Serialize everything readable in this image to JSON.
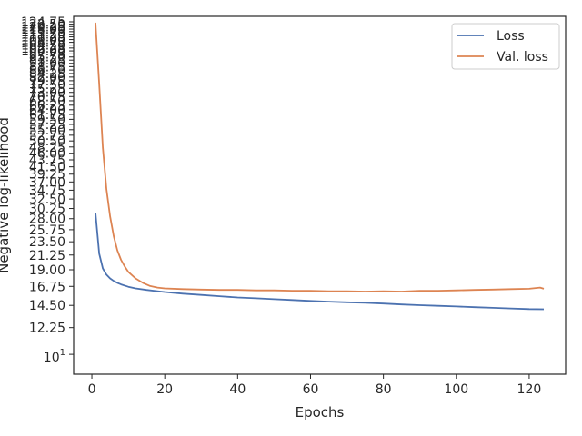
{
  "chart_data": {
    "type": "line",
    "xlabel": "Epochs",
    "ylabel": "Negative log-likelihood",
    "y_scale": "log",
    "xlim": [
      -5,
      130
    ],
    "ylim": [
      8.6,
      130
    ],
    "x_ticks": [
      0,
      20,
      40,
      60,
      80,
      100,
      120
    ],
    "y_tick_values": [
      10,
      12.25,
      14.5,
      16.75,
      19.0,
      21.25,
      23.5,
      25.75,
      28.0,
      30.25,
      32.5,
      34.75,
      37.0,
      39.25,
      41.5,
      43.75,
      46.0,
      48.25,
      50.5,
      52.75,
      55.0,
      57.25,
      59.5,
      61.75,
      64.0,
      66.25,
      68.5,
      70.75,
      73.0,
      75.25,
      77.5,
      79.75,
      82.0,
      84.25,
      86.5,
      88.75,
      91.0,
      93.25,
      95.5,
      97.75,
      100.0,
      102.25,
      104.5,
      106.75,
      109.0,
      111.25,
      113.5,
      115.75,
      118.0,
      120.25,
      122.5,
      124.75
    ],
    "y_tick_labels": [
      "10^1",
      "12.25",
      "14.50",
      "16.75",
      "19.00",
      "21.25",
      "23.50",
      "25.75",
      "28.00",
      "30.25",
      "32.50",
      "34.75",
      "37.00",
      "39.25",
      "41.50",
      "43.75",
      "46.00",
      "48.25",
      "50.50",
      "52.75",
      "55.00",
      "57.25",
      "59.50",
      "61.75",
      "64.00",
      "66.25",
      "68.50",
      "70.75",
      "73.00",
      "75.25",
      "77.50",
      "79.75",
      "82.00",
      "84.25",
      "86.50",
      "88.75",
      "91.00",
      "93.25",
      "95.50",
      "97.75",
      "100.00",
      "102.25",
      "104.50",
      "106.75",
      "109.00",
      "111.25",
      "113.50",
      "115.75",
      "118.00",
      "120.25",
      "122.50",
      "124.75"
    ],
    "grid": false,
    "legend_position": "top-right",
    "series": [
      {
        "name": "Loss",
        "color": "#4c72b0",
        "points": [
          [
            1,
            29.3
          ],
          [
            2,
            21.5
          ],
          [
            3,
            19.2
          ],
          [
            4,
            18.3
          ],
          [
            5,
            17.8
          ],
          [
            6,
            17.45
          ],
          [
            7,
            17.2
          ],
          [
            8,
            17.0
          ],
          [
            10,
            16.7
          ],
          [
            12,
            16.5
          ],
          [
            15,
            16.3
          ],
          [
            18,
            16.15
          ],
          [
            20,
            16.05
          ],
          [
            25,
            15.85
          ],
          [
            30,
            15.7
          ],
          [
            35,
            15.55
          ],
          [
            40,
            15.4
          ],
          [
            45,
            15.3
          ],
          [
            50,
            15.2
          ],
          [
            55,
            15.1
          ],
          [
            60,
            15.0
          ],
          [
            65,
            14.92
          ],
          [
            70,
            14.85
          ],
          [
            75,
            14.78
          ],
          [
            80,
            14.7
          ],
          [
            85,
            14.6
          ],
          [
            90,
            14.52
          ],
          [
            95,
            14.45
          ],
          [
            100,
            14.38
          ],
          [
            105,
            14.3
          ],
          [
            110,
            14.23
          ],
          [
            115,
            14.17
          ],
          [
            120,
            14.1
          ],
          [
            124,
            14.08
          ]
        ]
      },
      {
        "name": "Val. loss",
        "color": "#dd8452",
        "points": [
          [
            1,
            124.0
          ],
          [
            2,
            78.0
          ],
          [
            3,
            48.0
          ],
          [
            4,
            35.0
          ],
          [
            5,
            28.5
          ],
          [
            6,
            24.5
          ],
          [
            7,
            22.0
          ],
          [
            8,
            20.5
          ],
          [
            9,
            19.5
          ],
          [
            10,
            18.7
          ],
          [
            12,
            17.8
          ],
          [
            14,
            17.2
          ],
          [
            16,
            16.8
          ],
          [
            18,
            16.6
          ],
          [
            20,
            16.5
          ],
          [
            25,
            16.4
          ],
          [
            30,
            16.35
          ],
          [
            35,
            16.3
          ],
          [
            40,
            16.3
          ],
          [
            45,
            16.25
          ],
          [
            50,
            16.25
          ],
          [
            55,
            16.2
          ],
          [
            60,
            16.2
          ],
          [
            65,
            16.15
          ],
          [
            70,
            16.15
          ],
          [
            75,
            16.1
          ],
          [
            80,
            16.15
          ],
          [
            85,
            16.1
          ],
          [
            90,
            16.2
          ],
          [
            95,
            16.2
          ],
          [
            100,
            16.25
          ],
          [
            105,
            16.3
          ],
          [
            110,
            16.35
          ],
          [
            115,
            16.4
          ],
          [
            120,
            16.45
          ],
          [
            123,
            16.6
          ],
          [
            124,
            16.45
          ]
        ]
      }
    ]
  }
}
